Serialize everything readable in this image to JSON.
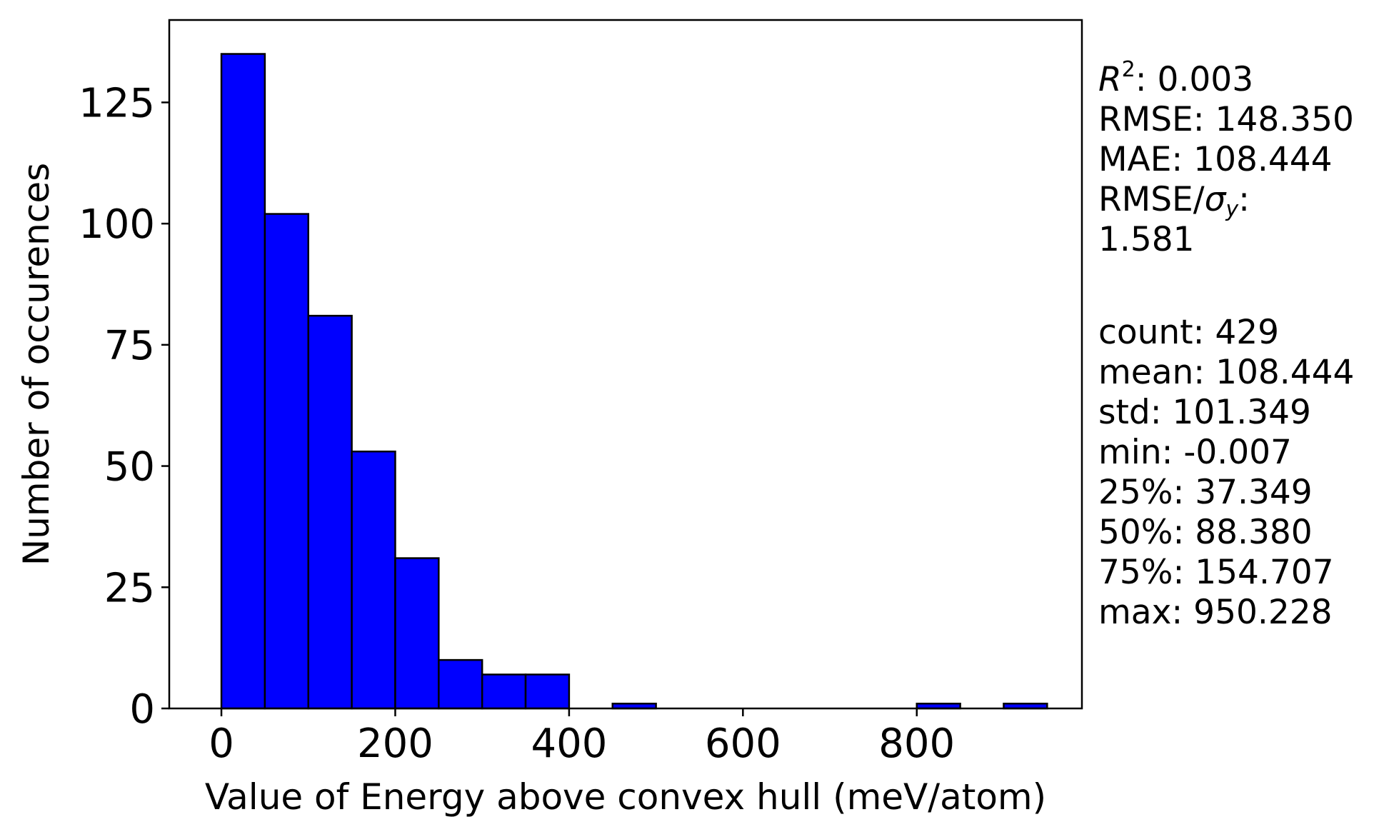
{
  "chart_data": {
    "type": "bar",
    "title": "",
    "xlabel": "Value of Energy above convex hull (meV/atom)",
    "ylabel": "Number of occurences",
    "xlim": [
      -60,
      990
    ],
    "ylim": [
      0,
      142
    ],
    "xticks": [
      0,
      200,
      400,
      600,
      800
    ],
    "xtick_labels": [
      "0",
      "200",
      "400",
      "600",
      "800"
    ],
    "yticks": [
      0,
      25,
      50,
      75,
      100,
      125
    ],
    "ytick_labels": [
      "0",
      "25",
      "50",
      "75",
      "100",
      "125"
    ],
    "bar_color": "#0000ff",
    "edge_color": "#000000",
    "bins": [
      {
        "x0": 0,
        "x1": 50,
        "count": 135
      },
      {
        "x0": 50,
        "x1": 100,
        "count": 102
      },
      {
        "x0": 100,
        "x1": 150,
        "count": 81
      },
      {
        "x0": 150,
        "x1": 200,
        "count": 53
      },
      {
        "x0": 200,
        "x1": 250,
        "count": 31
      },
      {
        "x0": 250,
        "x1": 300,
        "count": 10
      },
      {
        "x0": 300,
        "x1": 350,
        "count": 7
      },
      {
        "x0": 350,
        "x1": 400,
        "count": 7
      },
      {
        "x0": 400,
        "x1": 450,
        "count": 0
      },
      {
        "x0": 450,
        "x1": 500,
        "count": 1
      },
      {
        "x0": 500,
        "x1": 550,
        "count": 0
      },
      {
        "x0": 550,
        "x1": 600,
        "count": 0
      },
      {
        "x0": 600,
        "x1": 650,
        "count": 0
      },
      {
        "x0": 650,
        "x1": 700,
        "count": 0
      },
      {
        "x0": 700,
        "x1": 750,
        "count": 0
      },
      {
        "x0": 750,
        "x1": 800,
        "count": 0
      },
      {
        "x0": 800,
        "x1": 850,
        "count": 1
      },
      {
        "x0": 850,
        "x1": 900,
        "count": 0
      },
      {
        "x0": 900,
        "x1": 950,
        "count": 1
      }
    ]
  },
  "stats": {
    "r2_label": "R",
    "r2_sup": "2",
    "r2_value": ": 0.003",
    "rmse": "RMSE: 148.350",
    "mae": "MAE: 108.444",
    "rmse_sigma_prefix": "RMSE/",
    "sigma": "σ",
    "sigma_sub": "y",
    "rmse_sigma_suffix": ":",
    "rmse_sigma_value": "1.581",
    "count": "count: 429",
    "mean": "mean: 108.444",
    "std": "std: 101.349",
    "min": "min: -0.007",
    "p25": "25%: 37.349",
    "p50": "50%: 88.380",
    "p75": "75%: 154.707",
    "max": "max: 950.228"
  }
}
